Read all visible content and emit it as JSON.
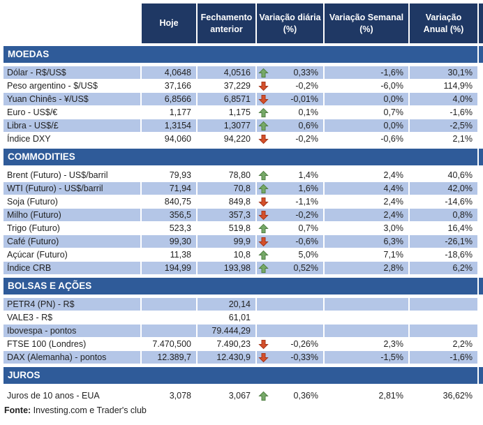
{
  "header": {
    "columns": [
      {
        "lines": [
          "Hoje"
        ]
      },
      {
        "lines": [
          "Fechamento",
          "anterior"
        ]
      },
      {
        "lines": [
          "Variação diária",
          "(%)"
        ]
      },
      {
        "lines": [
          "Variação Semanal",
          "(%)"
        ]
      },
      {
        "lines": [
          "Variação",
          "Anual (%)"
        ]
      }
    ]
  },
  "sections": [
    {
      "title": "MOEDAS",
      "shade_offset": 0,
      "rows": [
        {
          "label": "Dólar - R$/US$",
          "hoje": "4,0648",
          "fechamento": "4,0516",
          "arrow": "up",
          "var_diaria": "0,33%",
          "var_semanal": "-1,6%",
          "var_anual": "30,1%"
        },
        {
          "label": "Peso argentino - $/US$",
          "hoje": "37,166",
          "fechamento": "37,229",
          "arrow": "down",
          "var_diaria": "-0,2%",
          "var_semanal": "-6,0%",
          "var_anual": "114,9%"
        },
        {
          "label": "Yuan Chinês - ¥/US$",
          "hoje": "6,8566",
          "fechamento": "6,8571",
          "arrow": "down",
          "var_diaria": "-0,01%",
          "var_semanal": "0,0%",
          "var_anual": "4,0%"
        },
        {
          "label": "Euro - US$/€",
          "hoje": "1,177",
          "fechamento": "1,175",
          "arrow": "up",
          "var_diaria": "0,1%",
          "var_semanal": "0,7%",
          "var_anual": "-1,6%"
        },
        {
          "label": "Libra - US$/£",
          "hoje": "1,3154",
          "fechamento": "1,3077",
          "arrow": "up",
          "var_diaria": "0,6%",
          "var_semanal": "0,0%",
          "var_anual": "-2,5%"
        },
        {
          "label": "Índice DXY",
          "hoje": "94,060",
          "fechamento": "94,220",
          "arrow": "down",
          "var_diaria": "-0,2%",
          "var_semanal": "-0,6%",
          "var_anual": "2,1%"
        }
      ]
    },
    {
      "title": "COMMODITIES",
      "shade_offset": 1,
      "rows": [
        {
          "label": "Brent (Futuro) - US$/barril",
          "hoje": "79,93",
          "fechamento": "78,80",
          "arrow": "up",
          "var_diaria": "1,4%",
          "var_semanal": "2,4%",
          "var_anual": "40,6%"
        },
        {
          "label": "WTI (Futuro) - US$/barril",
          "hoje": "71,94",
          "fechamento": "70,8",
          "arrow": "up",
          "var_diaria": "1,6%",
          "var_semanal": "4,4%",
          "var_anual": "42,0%"
        },
        {
          "label": "Soja (Futuro)",
          "hoje": "840,75",
          "fechamento": "849,8",
          "arrow": "down",
          "var_diaria": "-1,1%",
          "var_semanal": "2,4%",
          "var_anual": "-14,6%"
        },
        {
          "label": "Milho (Futuro)",
          "hoje": "356,5",
          "fechamento": "357,3",
          "arrow": "down",
          "var_diaria": "-0,2%",
          "var_semanal": "2,4%",
          "var_anual": "0,8%"
        },
        {
          "label": "Trigo (Futuro)",
          "hoje": "523,3",
          "fechamento": "519,8",
          "arrow": "up",
          "var_diaria": "0,7%",
          "var_semanal": "3,0%",
          "var_anual": "16,4%"
        },
        {
          "label": "Café (Futuro)",
          "hoje": "99,30",
          "fechamento": "99,9",
          "arrow": "down",
          "var_diaria": "-0,6%",
          "var_semanal": "6,3%",
          "var_anual": "-26,1%"
        },
        {
          "label": "Açúcar (Futuro)",
          "hoje": "11,38",
          "fechamento": "10,8",
          "arrow": "up",
          "var_diaria": "5,0%",
          "var_semanal": "7,1%",
          "var_anual": "-18,6%"
        },
        {
          "label": "Índice CRB",
          "hoje": "194,99",
          "fechamento": "193,98",
          "arrow": "up",
          "var_diaria": "0,52%",
          "var_semanal": "2,8%",
          "var_anual": "6,2%"
        }
      ]
    },
    {
      "title": "BOLSAS E AÇÕES",
      "shade_offset": 0,
      "rows": [
        {
          "label": "PETR4 (PN) - R$",
          "hoje": "",
          "fechamento": "20,14",
          "arrow": null,
          "var_diaria": "",
          "var_semanal": "",
          "var_anual": ""
        },
        {
          "label": "VALE3 - R$",
          "hoje": "",
          "fechamento": "61,01",
          "arrow": null,
          "var_diaria": "",
          "var_semanal": "",
          "var_anual": ""
        },
        {
          "label": "Ibovespa - pontos",
          "hoje": "",
          "fechamento": "79.444,29",
          "arrow": null,
          "var_diaria": "",
          "var_semanal": "",
          "var_anual": ""
        },
        {
          "label": "FTSE 100 (Londres)",
          "hoje": "7.470,500",
          "fechamento": "7.490,23",
          "arrow": "down",
          "var_diaria": "-0,26%",
          "var_semanal": "2,3%",
          "var_anual": "2,2%"
        },
        {
          "label": "DAX (Alemanha) - pontos",
          "hoje": "12.389,7",
          "fechamento": "12.430,9",
          "arrow": "down",
          "var_diaria": "-0,33%",
          "var_semanal": "-1,5%",
          "var_anual": "-1,6%"
        }
      ]
    },
    {
      "title": "JUROS",
      "shade_offset": 1,
      "rows": [
        {
          "label": "Juros de 10 anos - EUA",
          "hoje": "3,078",
          "fechamento": "3,067",
          "arrow": "up",
          "var_diaria": "0,36%",
          "var_semanal": "2,81%",
          "var_anual": "36,62%"
        }
      ]
    }
  ],
  "footer": {
    "label": "Fonte:",
    "text": "Investing.com e Trader's club"
  },
  "colors": {
    "header_bg": "#1F3864",
    "header_text": "#FFFFFF",
    "band_bg": "#2F5B99",
    "row_shaded": "#B4C6E7",
    "row_plain": "#FFFFFF",
    "text": "#1F1F1F",
    "up_arrow_fill": "#76A968",
    "up_arrow_stroke": "#4E7C40",
    "down_arrow_fill": "#D4502B",
    "down_arrow_stroke": "#A23318"
  }
}
